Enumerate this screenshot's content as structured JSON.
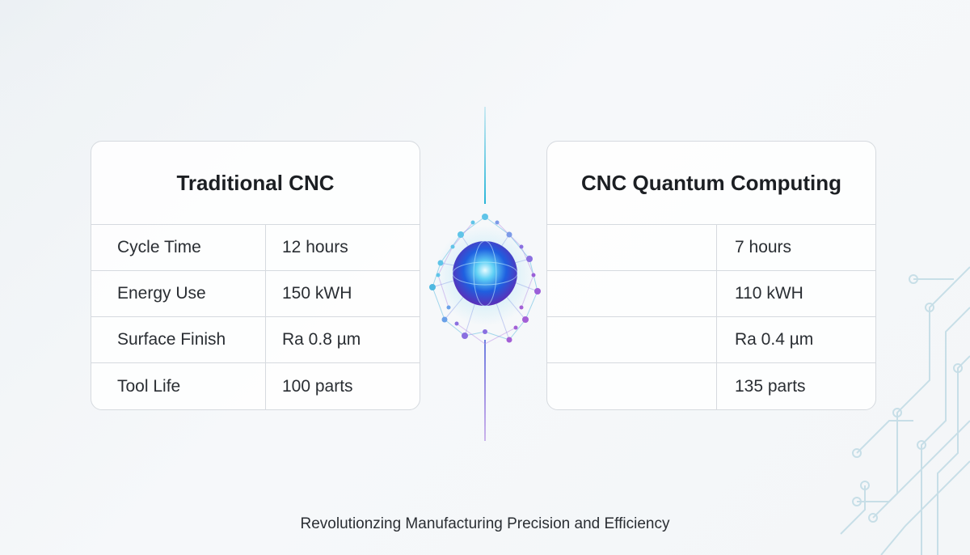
{
  "comparison": {
    "left": {
      "title": "Traditional CNC",
      "rows": [
        {
          "label": "Cycle Time",
          "value": "12 hours"
        },
        {
          "label": "Energy Use",
          "value": "150 kWH"
        },
        {
          "label": "Surface Finish",
          "value": "Ra 0.8 µm"
        },
        {
          "label": "Tool Life",
          "value": "100 parts"
        }
      ]
    },
    "right": {
      "title": "CNC Quantum Computing",
      "rows": [
        {
          "value": "7 hours"
        },
        {
          "value": "110 kWH"
        },
        {
          "value": "Ra 0.4 µm"
        },
        {
          "value": "135 parts"
        }
      ]
    }
  },
  "caption": "Revolutionzing Manufacturing Precision and Efficiency",
  "colors": {
    "accent_cyan": "#29b6d8",
    "accent_purple": "#8a4fd6",
    "sphere_blue": "#1f5fe0"
  },
  "decorations": {
    "center": "quantum-network-sphere-icon",
    "background": "circuit-trace-pattern"
  }
}
